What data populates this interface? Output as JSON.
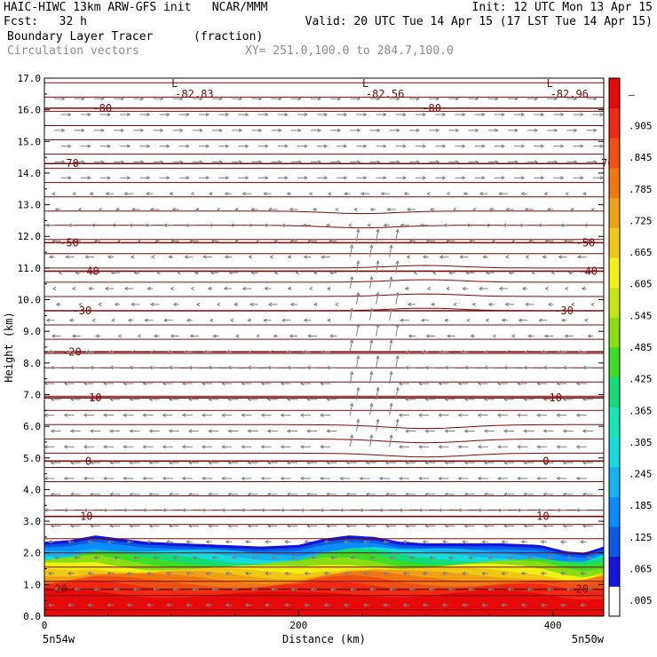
{
  "header": {
    "line1_left": "HAIC-HIWC 13km ARW-GFS init   NCAR/MMM",
    "line1_right": "Init: 12 UTC Mon 13 Apr 15",
    "line2_left": "Fcst:   32 h",
    "line2_right": "Valid: 20 UTC Tue 14 Apr 15 (17 LST Tue 14 Apr 15)",
    "field_name": "Boundary Layer Tracer",
    "field_units": "(fraction)",
    "vector_label": "Circulation vectors",
    "xy_label": "XY= 251.0,100.0 to 284.7,100.0"
  },
  "chart_data": {
    "type": "cross-section",
    "ylabel": "Height (km)",
    "xlabel": "Distance (km)",
    "ylim": [
      0,
      17
    ],
    "xlim": [
      0,
      440
    ],
    "y_ticks": [
      "0.0",
      "1.0",
      "2.0",
      "3.0",
      "4.0",
      "5.0",
      "6.0",
      "7.0",
      "8.0",
      "9.0",
      "10.0",
      "11.0",
      "12.0",
      "13.0",
      "14.0",
      "15.0",
      "16.0",
      "17.0"
    ],
    "x_ticks": [
      0,
      200,
      400
    ],
    "x_end_labels": {
      "left": "5n54w",
      "right": "5n50w"
    },
    "colorbar": {
      "labels": [
        ".005",
        ".065",
        ".125",
        ".185",
        ".245",
        ".305",
        ".365",
        ".425",
        ".485",
        ".545",
        ".605",
        ".665",
        ".725",
        ".785",
        ".845",
        ".905",
        "–"
      ],
      "colors": [
        "#ffffff",
        "#1414dc",
        "#0a5ae6",
        "#0a8cff",
        "#14b4f0",
        "#14dcdc",
        "#14e6b4",
        "#14dc78",
        "#3cdc28",
        "#8cdc14",
        "#c8e614",
        "#f0f014",
        "#f0c814",
        "#f0a014",
        "#f07814",
        "#f05014",
        "#f02814",
        "#e60a0a"
      ]
    },
    "isotherms": [
      {
        "label": "-80",
        "km": 16.05
      },
      {
        "label": "-70",
        "km": 14.3
      },
      {
        "label": "-50",
        "km": 11.8
      },
      {
        "label": "-40",
        "km": 10.9
      },
      {
        "label": "-30",
        "km": 9.65
      },
      {
        "label": "-20",
        "km": 8.35
      },
      {
        "label": "-10",
        "km": 6.9
      },
      {
        "label": "0",
        "km": 4.9
      },
      {
        "label": "10",
        "km": 3.15
      },
      {
        "label": "20",
        "km": 0.85
      }
    ],
    "lows": [
      {
        "label": "L",
        "value": "-82.83",
        "x_km": 100
      },
      {
        "label": "L",
        "value": "-82.56",
        "x_km": 250
      },
      {
        "label": "L",
        "value": "-82.96",
        "x_km": 395
      }
    ]
  }
}
